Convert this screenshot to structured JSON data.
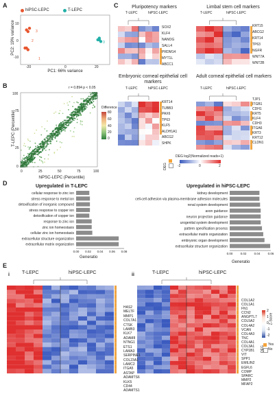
{
  "panels": {
    "A": {
      "label": "A",
      "legend": [
        "hiPSC-LEPC",
        "T-LEPC"
      ],
      "colors": {
        "hipsc": "#e8562f",
        "tlepc": "#22b0a8"
      },
      "xlabel": "PC1: 66% variance",
      "ylabel": "PC2: 19% variance",
      "xticks": [
        "-20",
        "0",
        "20"
      ],
      "yticks": [
        "10",
        "0",
        "-10"
      ],
      "point_labels_hipsc": [
        "3",
        "2",
        "1"
      ],
      "point_labels_tlepc": [
        "3"
      ]
    },
    "B": {
      "label": "B",
      "stats": "r = 0.894    p < 0.05",
      "xlabel": "hiPSC-LEPC (Percentile)",
      "ylabel": "T-LEPC (Percentile)",
      "ticks": [
        "0",
        "25",
        "50",
        "75",
        "100"
      ],
      "legend_title": "Difference",
      "legend_ticks": [
        "80",
        "60",
        "40",
        "20",
        "0"
      ]
    },
    "C": {
      "label": "C",
      "titles": [
        "Pluripotency markers",
        "Limbal stem cell markers",
        "Embryonic corneal epithelial cell markers",
        "Adult corneal epithelial cell markers"
      ],
      "group_left": "T-LEPC",
      "group_right": "hiPSC-LEPC",
      "genes_pluri": [
        "SOX2",
        "KLF4",
        "NANOG",
        "SALL4",
        "PRDM14",
        "MYT1L",
        "ABCC1"
      ],
      "genes_limbal": [
        "KRT15",
        "ABCG2",
        "KRT14",
        "TP63",
        "NGFR",
        "WNT7A",
        "WNT2B"
      ],
      "genes_embryo": [
        "KRT14",
        "TUBB3",
        "PAX6",
        "TP63",
        "KLF5",
        "ALDH1A1",
        "ABCG2",
        "SHPK"
      ],
      "genes_adult": [
        "TJP1",
        "ITGB1",
        "CDH1",
        "KRT5",
        "KLF4",
        "CDH3",
        "ITGA6",
        "KRT3",
        "KRT12",
        "CLDN1"
      ],
      "scale_title": "DEG log2(Normalized reads+1)",
      "scale_ticks": [
        "-2",
        "0",
        "2"
      ],
      "deg_label": "DEG",
      "deg_yes_no": [
        "Yes",
        "No"
      ]
    },
    "D": {
      "label": "D",
      "left_title": "Upregulated in T-LEPC",
      "right_title": "Upregulated in hiPSC-LEPC",
      "xlabel": "Generatio",
      "left_ticks": [
        "0.00",
        "0.02",
        "0.04",
        "0.06",
        "0.08"
      ],
      "right_ticks": [
        "0.00",
        "0.02",
        "0.04",
        "0.06"
      ]
    },
    "E": {
      "label": "E",
      "sub_i": "i",
      "sub_ii": "ii",
      "group_left": "T-LEPC",
      "group_right": "hiPSC-LEPC",
      "genes_i": [
        "HAS2",
        "MELTF",
        "MMP1",
        "COL7A1",
        "CTSK",
        "LAMB3",
        "KLK7",
        "ADAM8",
        "NTNG1",
        "ETS1",
        "LAMA3",
        "SERPINE1",
        "COL23A1",
        "LAMC2",
        "ITGA5",
        "ASTAP",
        "ADAMTS6",
        "KLK5",
        "CD44",
        "ADAMTS1"
      ],
      "genes_ii": [
        "COL1A2",
        "COL1A1",
        "FN1",
        "CCN2",
        "ANGPTL7",
        "COL5A2",
        "COL4A2",
        "VCAN",
        "COL4A3",
        "TNC",
        "COL4A1",
        "COL3A1",
        "CYP1B1",
        "VIT",
        "SPP1",
        "EMILIN2",
        "EGFL6",
        "COMP",
        "SPARC",
        "MMP2",
        "MFAP2"
      ],
      "zscore_title": "Z-Score",
      "zscore_ticks": [
        "2",
        "1",
        "0",
        "-1",
        "-2"
      ],
      "deg_label": "DEG",
      "deg_yes_no": [
        "Yes",
        "No"
      ]
    }
  },
  "chart_data": [
    {
      "type": "scatter",
      "panel": "A",
      "xlabel": "PC1: 66% variance",
      "ylabel": "PC2: 19% variance",
      "xlim": [
        -30,
        30
      ],
      "ylim": [
        -15,
        15
      ],
      "series": [
        {
          "name": "hiPSC-LEPC",
          "x": [
            -26,
            -25,
            -24,
            -26,
            -25,
            -27
          ],
          "y": [
            6,
            5,
            7,
            -5,
            -6,
            -5
          ]
        },
        {
          "name": "T-LEPC",
          "x": [
            22,
            23,
            24,
            23
          ],
          "y": [
            0,
            1,
            -1,
            0
          ]
        }
      ]
    },
    {
      "type": "scatter",
      "panel": "B",
      "xlabel": "hiPSC-LEPC (Percentile)",
      "ylabel": "T-LEPC (Percentile)",
      "xlim": [
        0,
        100
      ],
      "ylim": [
        0,
        100
      ],
      "r": 0.894,
      "p": "< 0.05"
    },
    {
      "type": "bar",
      "panel": "D",
      "title": "Upregulated in T-LEPC",
      "xlabel": "Generatio",
      "categories": [
        "cellular response to zinc ion",
        "stress response to metal ion",
        "detoxification of inorganic compound",
        "stress response to copper ion",
        "detoxification of copper ion",
        "response to zinc ion",
        "zinc ion homeostasis",
        "cellular zinc ion homeostasis",
        "extracellular structure organization",
        "extracellular matrix organization"
      ],
      "values": [
        0.022,
        0.023,
        0.023,
        0.023,
        0.022,
        0.026,
        0.026,
        0.027,
        0.071,
        0.071
      ],
      "xlim": [
        0,
        0.08
      ]
    },
    {
      "type": "bar",
      "panel": "D",
      "title": "Upregulated in hiPSC-LEPC",
      "xlabel": "Generatio",
      "categories": [
        "kidney development",
        "cell-cell adhesion via plasma-membrane adhesion molecules",
        "renal system development",
        "axon guidance",
        "neuron projection guidance",
        "urogenital system development",
        "pattern specification process",
        "extracellular matrix organization",
        "embryonic organ development",
        "extracellular structure organization"
      ],
      "values": [
        0.047,
        0.047,
        0.048,
        0.049,
        0.049,
        0.049,
        0.051,
        0.053,
        0.055,
        0.064
      ],
      "xlim": [
        0,
        0.065
      ]
    }
  ]
}
